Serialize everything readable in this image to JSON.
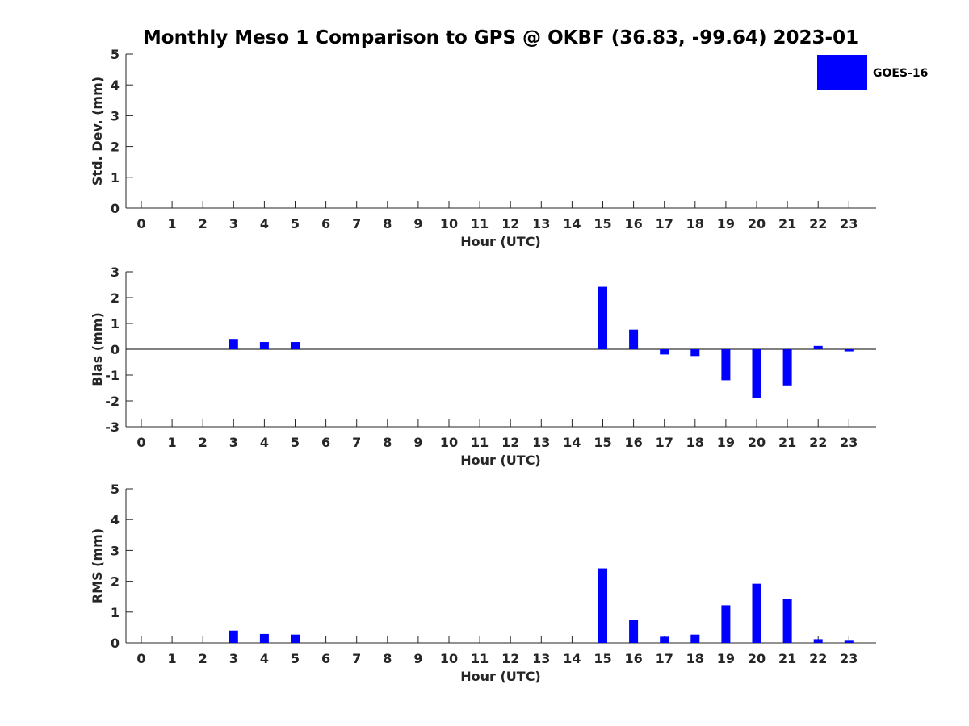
{
  "figure": {
    "title": "Monthly Meso 1 Comparison to GPS @ OKBF (36.83, -99.64) 2023-01",
    "legend": {
      "label": "GOES-16",
      "color": "#0000ff",
      "placement": "top-right"
    }
  },
  "chart_data": [
    {
      "type": "bar",
      "id": "std",
      "ylabel": "Std. Dev. (mm)",
      "xlabel": "Hour (UTC)",
      "ylim": [
        0,
        5
      ],
      "yticks": [
        0,
        1,
        2,
        3,
        4,
        5
      ],
      "categories": [
        "0",
        "1",
        "2",
        "3",
        "4",
        "5",
        "6",
        "7",
        "8",
        "9",
        "10",
        "11",
        "12",
        "13",
        "14",
        "15",
        "16",
        "17",
        "18",
        "19",
        "20",
        "21",
        "22",
        "23"
      ],
      "series": [
        {
          "name": "GOES-16",
          "color": "#0000ff",
          "values": [
            null,
            null,
            null,
            null,
            null,
            null,
            null,
            null,
            null,
            null,
            null,
            null,
            null,
            null,
            null,
            null,
            null,
            null,
            null,
            null,
            null,
            null,
            null,
            null
          ]
        }
      ],
      "grid": false
    },
    {
      "type": "bar",
      "id": "bias",
      "ylabel": "Bias (mm)",
      "xlabel": "Hour (UTC)",
      "ylim": [
        -3,
        3
      ],
      "yticks": [
        -3,
        -2,
        -1,
        0,
        1,
        2,
        3
      ],
      "zero_line": true,
      "categories": [
        "0",
        "1",
        "2",
        "3",
        "4",
        "5",
        "6",
        "7",
        "8",
        "9",
        "10",
        "11",
        "12",
        "13",
        "14",
        "15",
        "16",
        "17",
        "18",
        "19",
        "20",
        "21",
        "22",
        "23"
      ],
      "series": [
        {
          "name": "GOES-16",
          "color": "#0000ff",
          "values": [
            null,
            null,
            null,
            0.4,
            0.28,
            0.28,
            null,
            null,
            null,
            null,
            null,
            null,
            null,
            null,
            null,
            2.42,
            0.76,
            -0.2,
            -0.26,
            -1.2,
            -1.9,
            -1.4,
            0.13,
            -0.08
          ]
        }
      ],
      "grid": false
    },
    {
      "type": "bar",
      "id": "rms",
      "ylabel": "RMS (mm)",
      "xlabel": "Hour (UTC)",
      "ylim": [
        0,
        5
      ],
      "yticks": [
        0,
        1,
        2,
        3,
        4,
        5
      ],
      "categories": [
        "0",
        "1",
        "2",
        "3",
        "4",
        "5",
        "6",
        "7",
        "8",
        "9",
        "10",
        "11",
        "12",
        "13",
        "14",
        "15",
        "16",
        "17",
        "18",
        "19",
        "20",
        "21",
        "22",
        "23"
      ],
      "series": [
        {
          "name": "GOES-16",
          "color": "#0000ff",
          "values": [
            null,
            null,
            null,
            0.4,
            0.29,
            0.27,
            null,
            null,
            null,
            null,
            null,
            null,
            null,
            null,
            null,
            2.42,
            0.75,
            0.2,
            0.27,
            1.22,
            1.92,
            1.43,
            0.12,
            0.07
          ]
        }
      ],
      "grid": false
    }
  ]
}
